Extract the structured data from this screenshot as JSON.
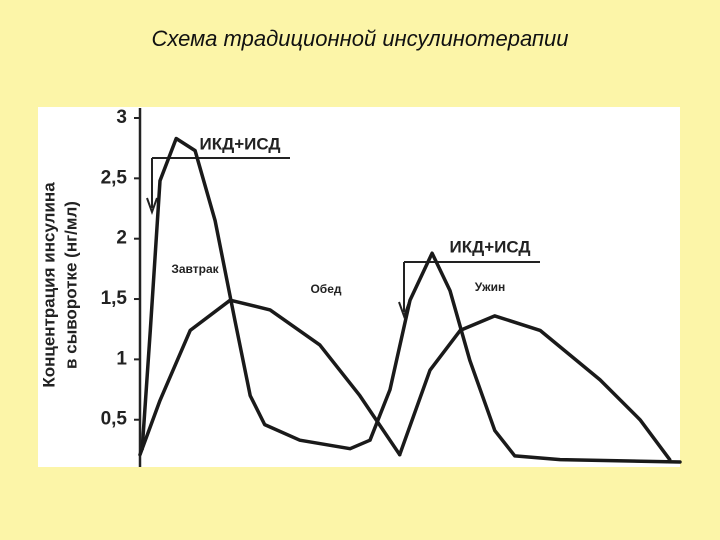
{
  "chart_data": {
    "type": "line",
    "title": "Схема традиционной инсулинотерапии",
    "y_label_lines": [
      "Концентрация инсулина",
      "в сыворотке (нг/мл)"
    ],
    "annotations": [
      "ИКД+ИСД",
      "ИКД+ИСД",
      "Завтрак",
      "Обед",
      "Ужин"
    ],
    "xlim": [
      0,
      100
    ],
    "ylim": [
      0.1,
      3
    ],
    "yticks": [
      {
        "value": 0.5,
        "label": "0,5"
      },
      1,
      {
        "value": 1.5,
        "label": "1,5"
      },
      2,
      {
        "value": 2.5,
        "label": "2,5"
      },
      3
    ],
    "series": [
      {
        "color": "#1a1a1a",
        "x": [
          0.4,
          1.9,
          3.7,
          6.7,
          10.2,
          13.9,
          17.6,
          20.4,
          23.1,
          29.6,
          38.9,
          42.6,
          46.3,
          50,
          54.1,
          57.4,
          61.1,
          65.7,
          69.4,
          77.8,
          100
        ],
        "values": [
          0.26,
          1.24,
          2.48,
          2.83,
          2.73,
          2.15,
          1.32,
          0.7,
          0.46,
          0.33,
          0.26,
          0.33,
          0.75,
          1.49,
          1.88,
          1.57,
          0.99,
          0.41,
          0.2,
          0.17,
          0.15
        ]
      },
      {
        "color": "#1a1a1a",
        "x": [
          0,
          3.7,
          9.3,
          16.7,
          24.1,
          33.3,
          40.7,
          48.1
        ],
        "values": [
          0.21,
          0.66,
          1.24,
          1.49,
          1.41,
          1.12,
          0.7,
          0.21
        ]
      },
      {
        "color": "#1a1a1a",
        "x": [
          48.1,
          53.7,
          59.3,
          65.7,
          74.1,
          85.2,
          92.6,
          98.1
        ],
        "values": [
          0.21,
          0.91,
          1.24,
          1.36,
          1.24,
          0.83,
          0.5,
          0.17
        ]
      }
    ]
  }
}
